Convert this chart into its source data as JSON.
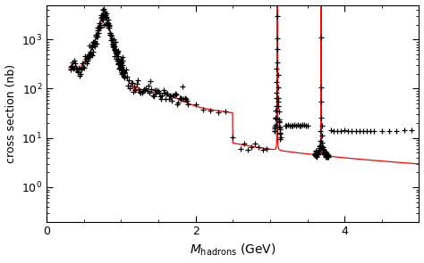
{
  "xlabel": "M_{hadrons} (GeV)",
  "ylabel": "cross section (nb)",
  "xlim": [
    0,
    5.0
  ],
  "ylim": [
    0.2,
    5000
  ],
  "bg_color": "#ffffff",
  "marker_color": "black",
  "line_color": "red",
  "marker": "+",
  "markersize": 4,
  "yticks": [
    1,
    10,
    100,
    1000
  ],
  "xticks": [
    0,
    2,
    4
  ],
  "figsize": [
    4.74,
    2.95
  ],
  "dpi": 100
}
